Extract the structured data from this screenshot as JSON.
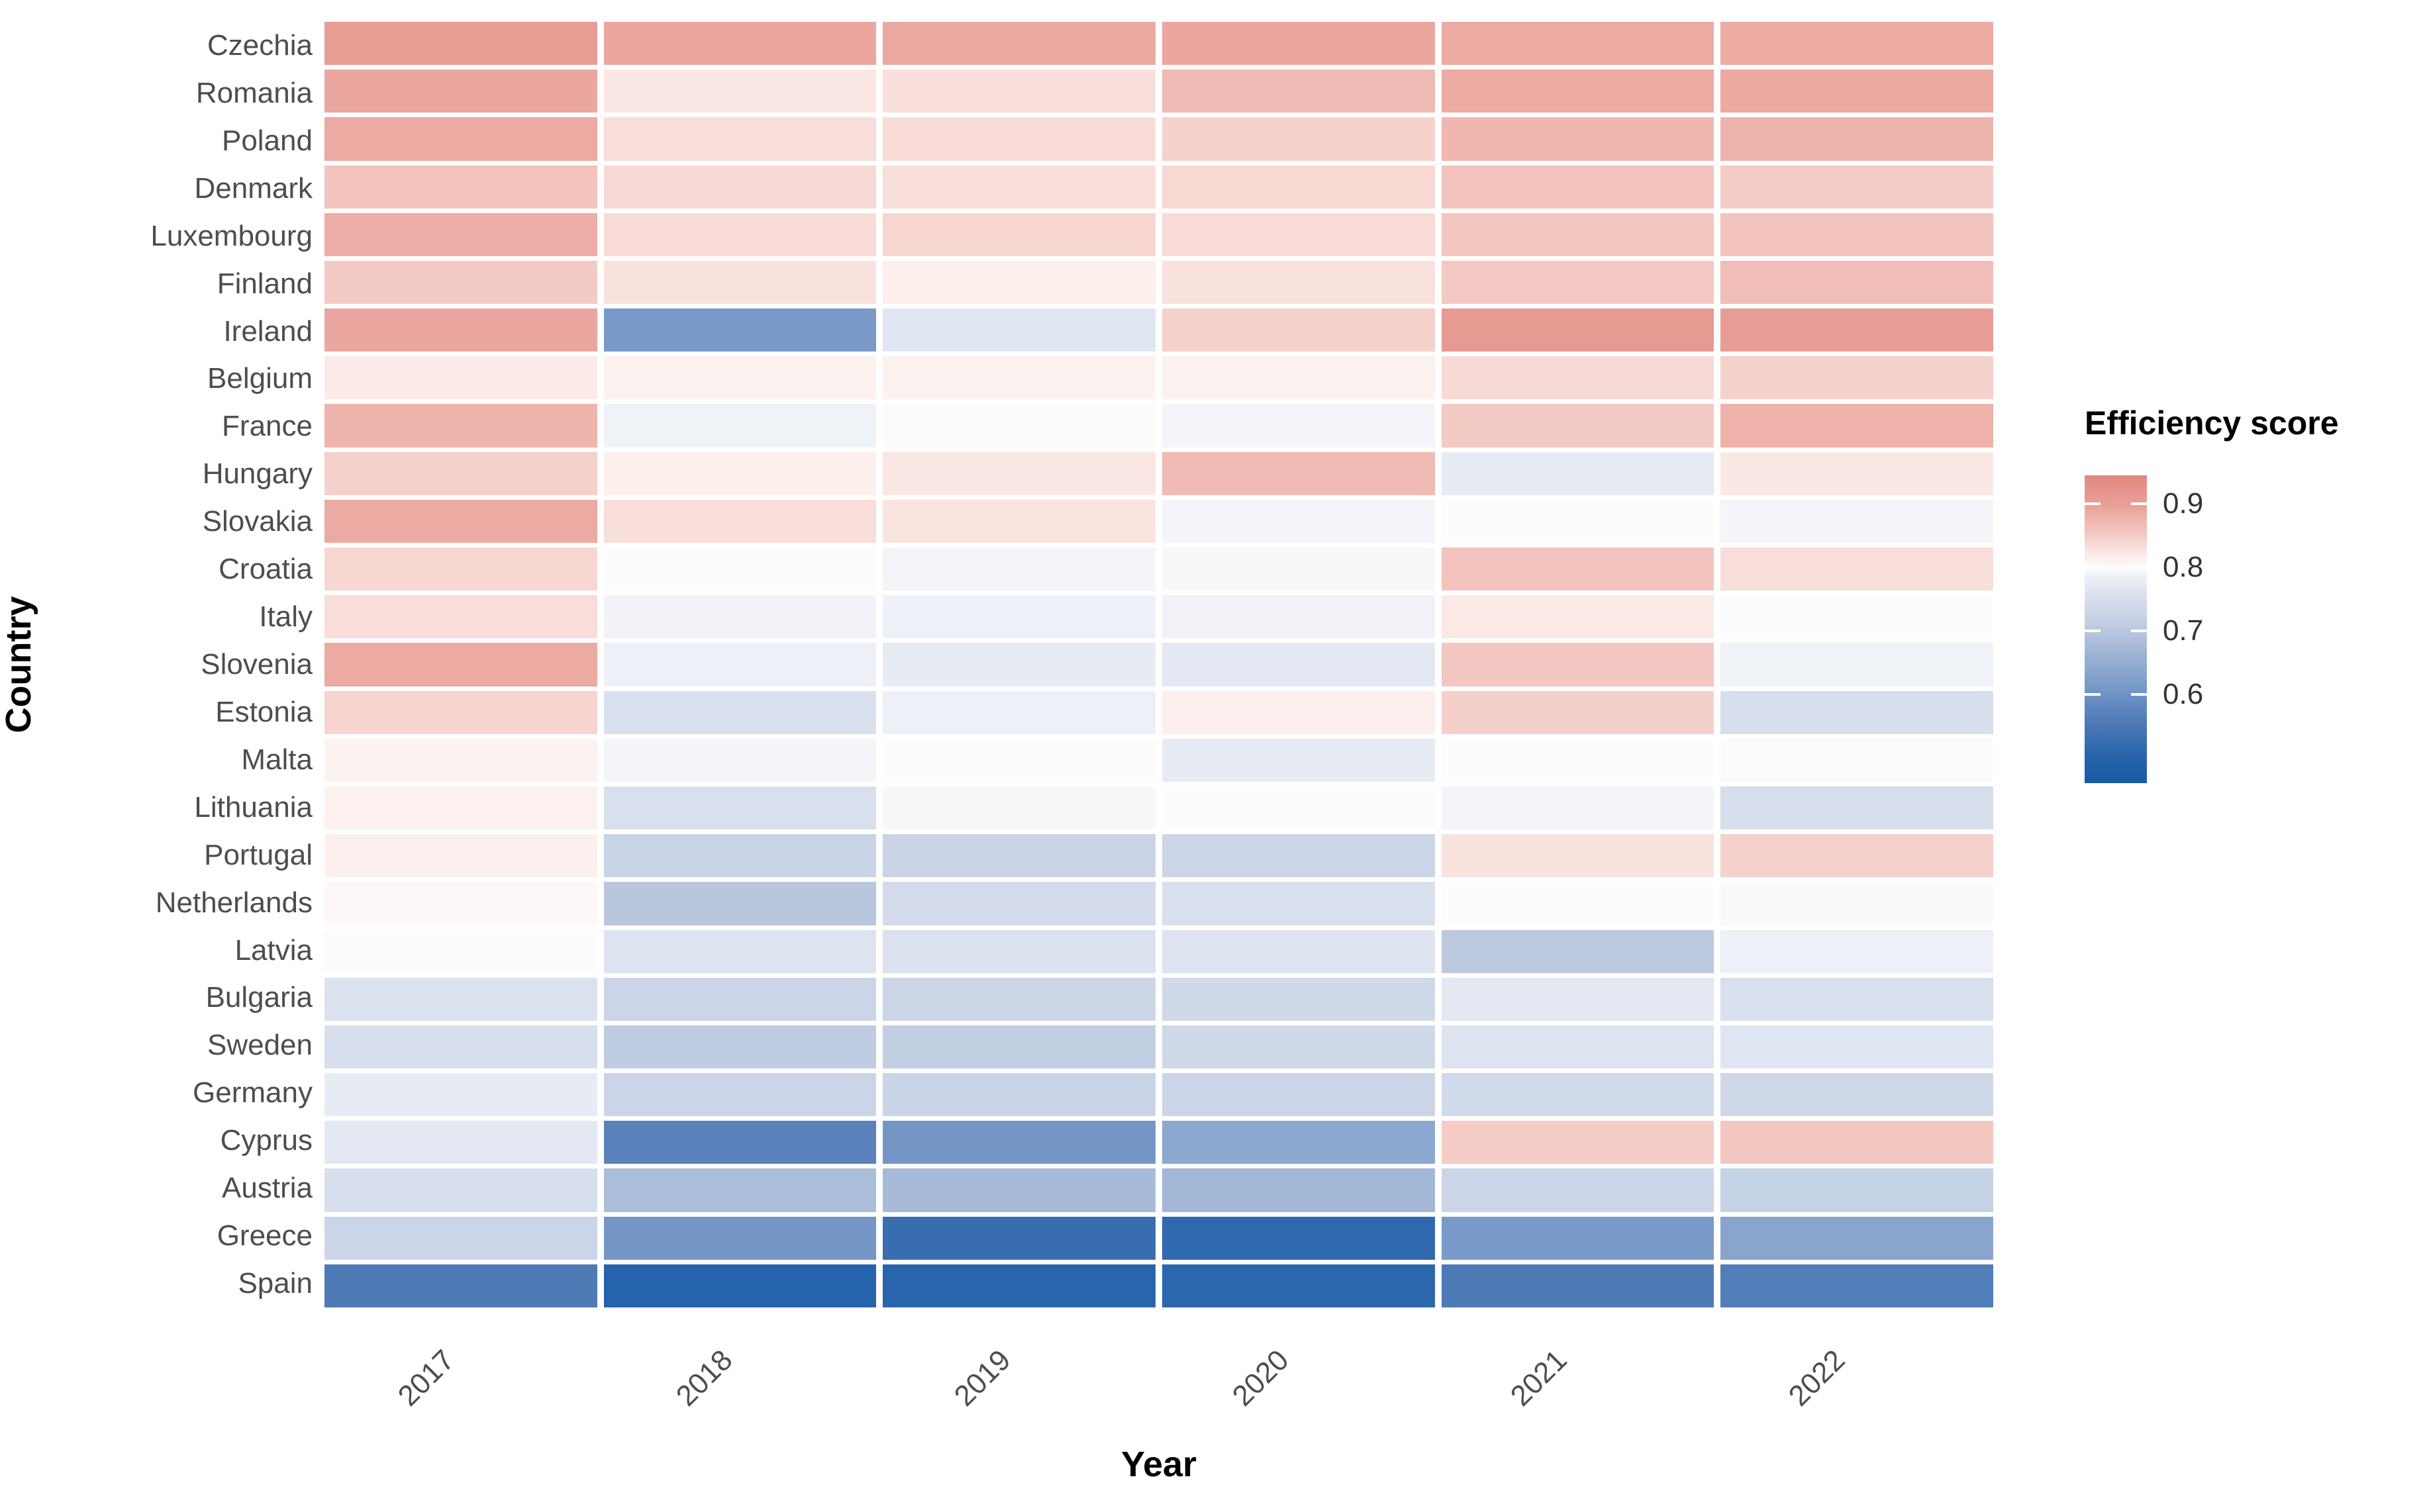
{
  "axes": {
    "x_title": "Year",
    "y_title": "Country",
    "x_tick_labels": [
      "2017",
      "2018",
      "2019",
      "2020",
      "2021",
      "2022"
    ],
    "y_tick_labels": [
      "Czechia",
      "Romania",
      "Poland",
      "Denmark",
      "Luxembourg",
      "Finland",
      "Ireland",
      "Belgium",
      "France",
      "Hungary",
      "Slovakia",
      "Croatia",
      "Italy",
      "Slovenia",
      "Estonia",
      "Malta",
      "Lithuania",
      "Portugal",
      "Netherlands",
      "Latvia",
      "Bulgaria",
      "Sweden",
      "Germany",
      "Cyprus",
      "Austria",
      "Greece",
      "Spain"
    ]
  },
  "legend": {
    "title": "Efficiency score",
    "tick_labels": [
      "0.9",
      "0.8",
      "0.7",
      "0.6"
    ],
    "tick_values": [
      0.9,
      0.8,
      0.7,
      0.6
    ],
    "domain": [
      0.46,
      0.945
    ],
    "position": "right"
  },
  "colors": {
    "background": "#ffffff",
    "tick_label": "#4d4d4d",
    "axis_title": "#000000",
    "high": "#e08880",
    "mid": "#fdfcfc",
    "low": "#1a5aa3"
  },
  "chart_data": {
    "type": "heatmap",
    "x": [
      "2017",
      "2018",
      "2019",
      "2020",
      "2021",
      "2022"
    ],
    "categories": [
      "Czechia",
      "Romania",
      "Poland",
      "Denmark",
      "Luxembourg",
      "Finland",
      "Ireland",
      "Belgium",
      "France",
      "Hungary",
      "Slovakia",
      "Croatia",
      "Italy",
      "Slovenia",
      "Estonia",
      "Malta",
      "Lithuania",
      "Portugal",
      "Netherlands",
      "Latvia",
      "Bulgaria",
      "Sweden",
      "Germany",
      "Cyprus",
      "Austria",
      "Greece",
      "Spain"
    ],
    "xlabel": "Year",
    "ylabel": "Country",
    "legend_title": "Efficiency score",
    "legend_position": "right",
    "grid": false,
    "value_name": "Efficiency score",
    "values": [
      [
        0.905,
        0.89,
        0.888,
        0.89,
        0.887,
        0.886
      ],
      [
        0.89,
        0.822,
        0.83,
        0.868,
        0.886,
        0.888
      ],
      [
        0.887,
        0.832,
        0.835,
        0.844,
        0.872,
        0.876
      ],
      [
        0.858,
        0.836,
        0.832,
        0.838,
        0.859,
        0.85
      ],
      [
        0.882,
        0.835,
        0.84,
        0.835,
        0.856,
        0.859
      ],
      [
        0.852,
        0.827,
        0.815,
        0.828,
        0.854,
        0.864
      ],
      [
        0.89,
        0.615,
        0.765,
        0.845,
        0.908,
        0.9
      ],
      [
        0.82,
        0.811,
        0.811,
        0.811,
        0.836,
        0.845
      ],
      [
        0.875,
        0.786,
        0.802,
        0.79,
        0.852,
        0.878
      ],
      [
        0.845,
        0.815,
        0.824,
        0.868,
        0.776,
        0.822
      ],
      [
        0.887,
        0.831,
        0.826,
        0.79,
        0.8,
        0.79
      ],
      [
        0.839,
        0.8,
        0.79,
        0.795,
        0.858,
        0.832
      ],
      [
        0.833,
        0.788,
        0.785,
        0.787,
        0.821,
        0.8
      ],
      [
        0.887,
        0.784,
        0.775,
        0.77,
        0.855,
        0.786
      ],
      [
        0.842,
        0.755,
        0.784,
        0.814,
        0.846,
        0.75
      ],
      [
        0.81,
        0.79,
        0.8,
        0.776,
        0.8,
        0.799
      ],
      [
        0.812,
        0.752,
        0.795,
        0.8,
        0.79,
        0.748
      ],
      [
        0.813,
        0.725,
        0.728,
        0.73,
        0.827,
        0.845
      ],
      [
        0.805,
        0.7,
        0.745,
        0.752,
        0.8,
        0.797
      ],
      [
        0.8,
        0.76,
        0.756,
        0.762,
        0.705,
        0.784
      ],
      [
        0.757,
        0.73,
        0.731,
        0.738,
        0.77,
        0.752
      ],
      [
        0.75,
        0.71,
        0.715,
        0.737,
        0.76,
        0.765
      ],
      [
        0.775,
        0.73,
        0.727,
        0.73,
        0.74,
        0.736
      ],
      [
        0.77,
        0.57,
        0.605,
        0.64,
        0.851,
        0.856
      ],
      [
        0.75,
        0.68,
        0.675,
        0.67,
        0.73,
        0.72
      ],
      [
        0.73,
        0.605,
        0.525,
        0.515,
        0.615,
        0.635
      ],
      [
        0.555,
        0.5,
        0.505,
        0.51,
        0.555,
        0.56
      ]
    ],
    "color_scale": {
      "type": "diverging",
      "midpoint": 0.8,
      "stops": [
        [
          0.46,
          "#1a5aa3"
        ],
        [
          0.5,
          "#2563ac"
        ],
        [
          0.55,
          "#4a77b4"
        ],
        [
          0.6,
          "#6f93c6"
        ],
        [
          0.7,
          "#b9c7de"
        ],
        [
          0.78,
          "#e9edf5"
        ],
        [
          0.8,
          "#fdfcfc"
        ],
        [
          0.82,
          "#fbeae7"
        ],
        [
          0.86,
          "#f2c2bb"
        ],
        [
          0.9,
          "#e89e96"
        ],
        [
          0.945,
          "#e08880"
        ]
      ]
    }
  }
}
